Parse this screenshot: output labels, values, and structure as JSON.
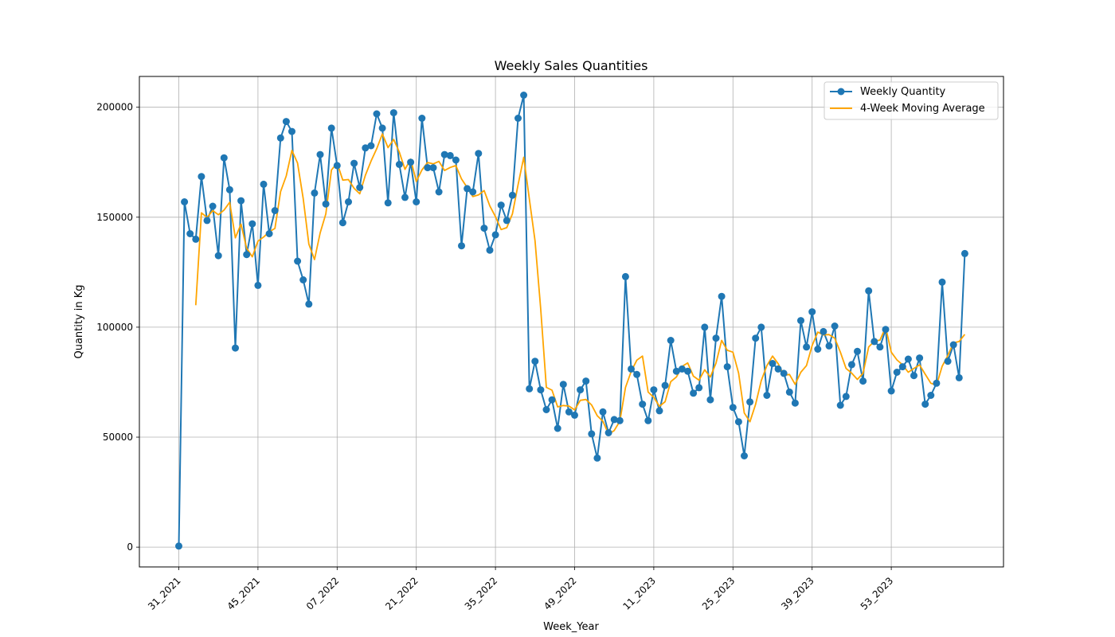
{
  "chart_data": {
    "type": "line",
    "title": "Weekly Sales Quantities",
    "xlabel": "Week_Year",
    "ylabel": "Quantity in Kg",
    "x_tick_labels": [
      "31_2021",
      "45_2021",
      "07_2022",
      "21_2022",
      "35_2022",
      "49_2022",
      "11_2023",
      "25_2023",
      "39_2023",
      "53_2023"
    ],
    "x_tick_index_step": 14,
    "y_ticks": [
      0,
      50000,
      100000,
      150000,
      200000
    ],
    "ylim": [
      -9000,
      214000
    ],
    "grid": true,
    "legend_position": "top-right",
    "series": [
      {
        "name": "Weekly Quantity",
        "color": "#1f77b4",
        "marker": "circle",
        "values": [
          500,
          157000,
          142500,
          140000,
          168500,
          148500,
          155000,
          132500,
          177000,
          162500,
          90500,
          157500,
          133000,
          147000,
          119000,
          165000,
          142500,
          153000,
          186000,
          193500,
          189000,
          130000,
          121500,
          110500,
          161000,
          178500,
          156000,
          190500,
          173500,
          147500,
          157000,
          174500,
          163500,
          181500,
          182500,
          197000,
          190500,
          156500,
          197500,
          174000,
          159000,
          175000,
          157000,
          195000,
          172500,
          172500,
          161500,
          178500,
          178000,
          176000,
          137000,
          163000,
          161500,
          179000,
          145000,
          135000,
          142000,
          155500,
          148500,
          160000,
          195000,
          205500,
          72000,
          84500,
          71500,
          62500,
          67000,
          54000,
          74000,
          61500,
          60000,
          71500,
          75500,
          51500,
          40500,
          61500,
          52000,
          58000,
          57500,
          123000,
          81000,
          78500,
          65000,
          57500,
          71500,
          62000,
          73500,
          94000,
          80000,
          81000,
          80000,
          70000,
          72500,
          100000,
          67000,
          95000,
          114000,
          82000,
          63500,
          57000,
          41500,
          66000,
          95000,
          100000,
          69000,
          83500,
          81000,
          79000,
          70500,
          65500,
          103000,
          91000,
          107000,
          90000,
          98000,
          91500,
          100500,
          64500,
          68500,
          83000,
          89000,
          75500,
          116500,
          93500,
          91000,
          99000,
          71000,
          79500,
          82000,
          85500,
          78000,
          86000,
          65000,
          69000,
          74500,
          120500,
          84500,
          92000,
          77000,
          133500
        ]
      },
      {
        "name": "4-Week Moving Average",
        "color": "#ffa500",
        "window": 4
      }
    ]
  }
}
